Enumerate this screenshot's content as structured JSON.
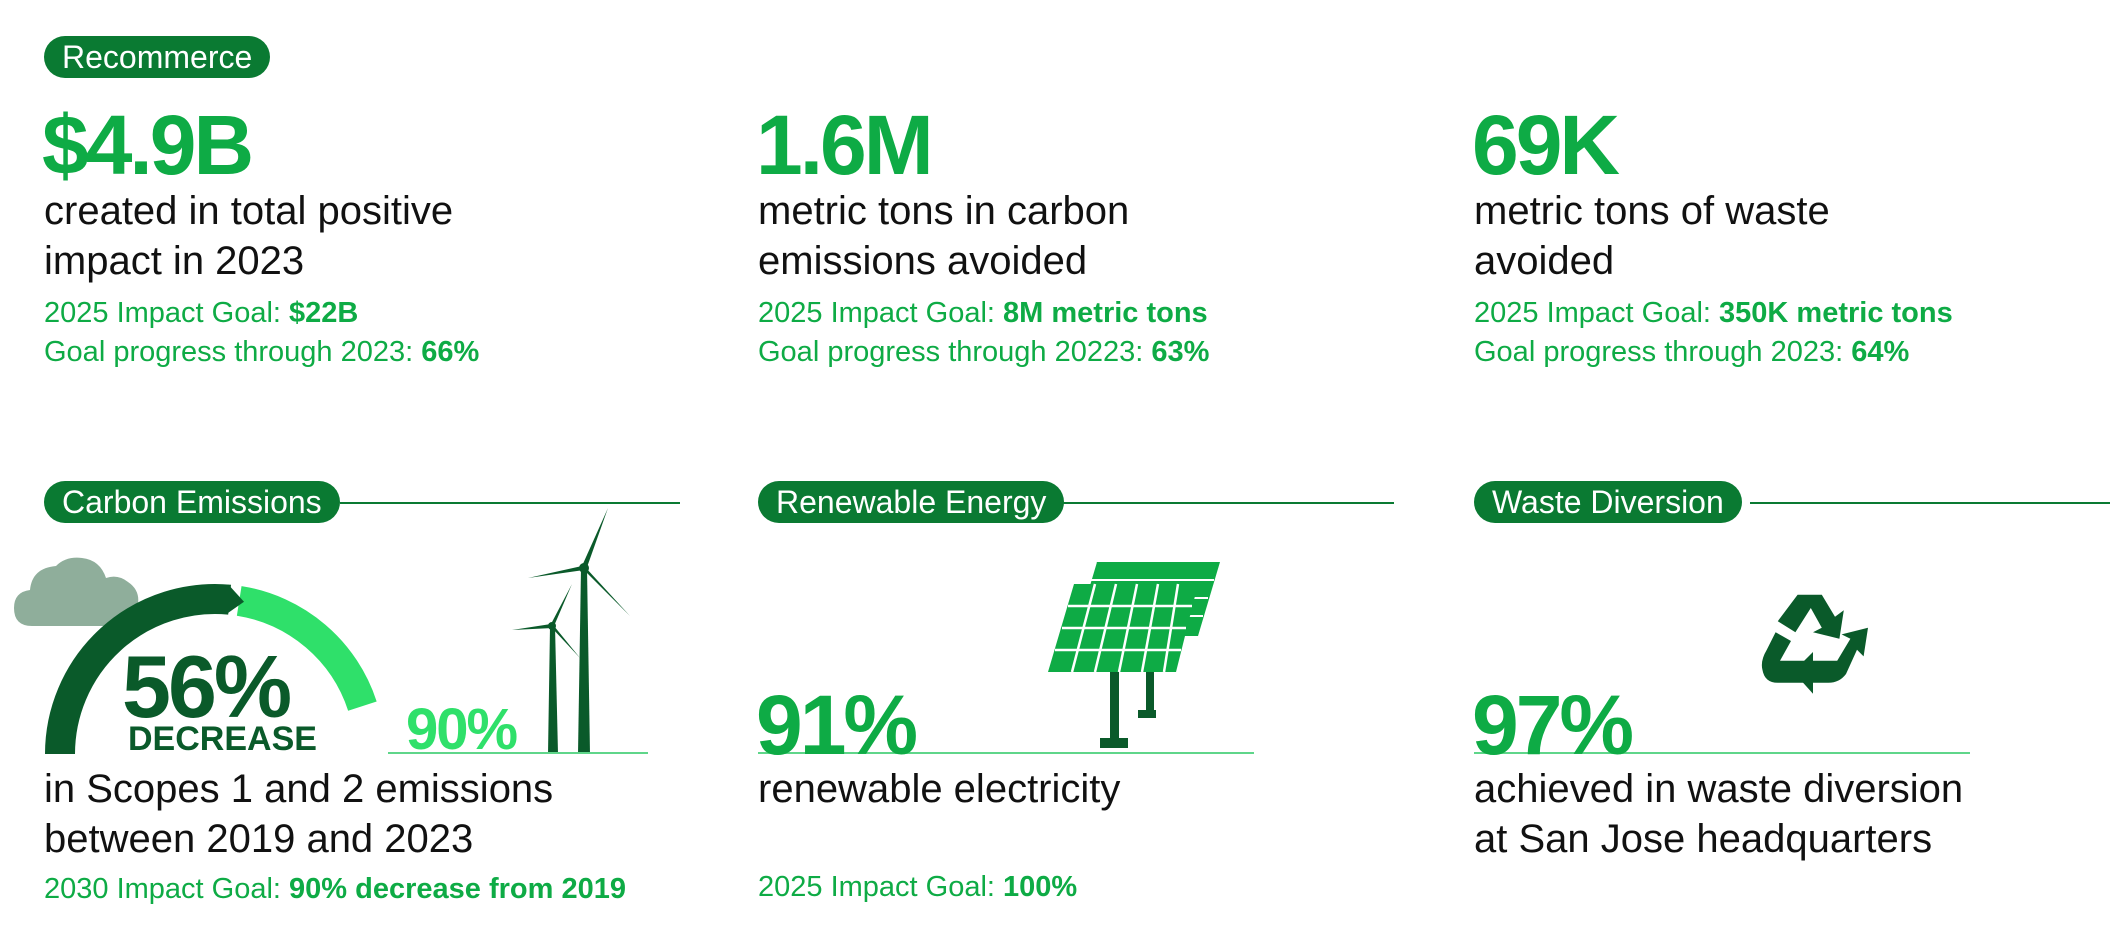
{
  "recommerce": {
    "label": "Recommerce",
    "stats": [
      {
        "value": "$4.9B",
        "desc_line1": "created in total positive",
        "desc_line2": "impact in 2023",
        "goal_prefix": "2025 Impact Goal: ",
        "goal_value": "$22B",
        "progress_prefix": "Goal progress through 2023: ",
        "progress_value": "66%"
      },
      {
        "value": "1.6M",
        "desc_line1": "metric tons in carbon",
        "desc_line2": "emissions avoided",
        "goal_prefix": "2025 Impact Goal: ",
        "goal_value": "8M metric tons",
        "progress_prefix": "Goal progress through 20223: ",
        "progress_value": "63%"
      },
      {
        "value": "69K",
        "desc_line1": "metric tons of waste",
        "desc_line2": "avoided",
        "goal_prefix": "2025 Impact Goal: ",
        "goal_value": "350K metric tons",
        "progress_prefix": "Goal progress through 2023: ",
        "progress_value": "64%"
      }
    ]
  },
  "carbon": {
    "label": "Carbon Emissions",
    "gauge_value": "56%",
    "gauge_word": "DECREASE",
    "gauge_current_fraction": 0.56,
    "gauge_target_fraction": 0.9,
    "target_value": "90%",
    "desc_line1": "in Scopes 1 and 2 emissions",
    "desc_line2": "between 2019 and 2023",
    "goal_prefix": "2030 Impact Goal: ",
    "goal_value": "90% decrease from 2019",
    "icons": [
      "cloud-icon",
      "wind-turbine-icon"
    ]
  },
  "renewable": {
    "label": "Renewable Energy",
    "value": "91%",
    "desc": "renewable electricity",
    "goal_prefix": "2025 Impact Goal: ",
    "goal_value": "100%",
    "icons": [
      "solar-panel-icon"
    ]
  },
  "waste": {
    "label": "Waste Diversion",
    "value": "97%",
    "desc_line1": "achieved in waste diversion",
    "desc_line2": "at San Jose headquarters",
    "icons": [
      "recycle-icon"
    ]
  },
  "colors": {
    "pill": "#0a7a32",
    "accent": "#0eab45",
    "dark": "#0a5a2a",
    "light": "#2fe06a",
    "cloud": "#8fae9b"
  }
}
